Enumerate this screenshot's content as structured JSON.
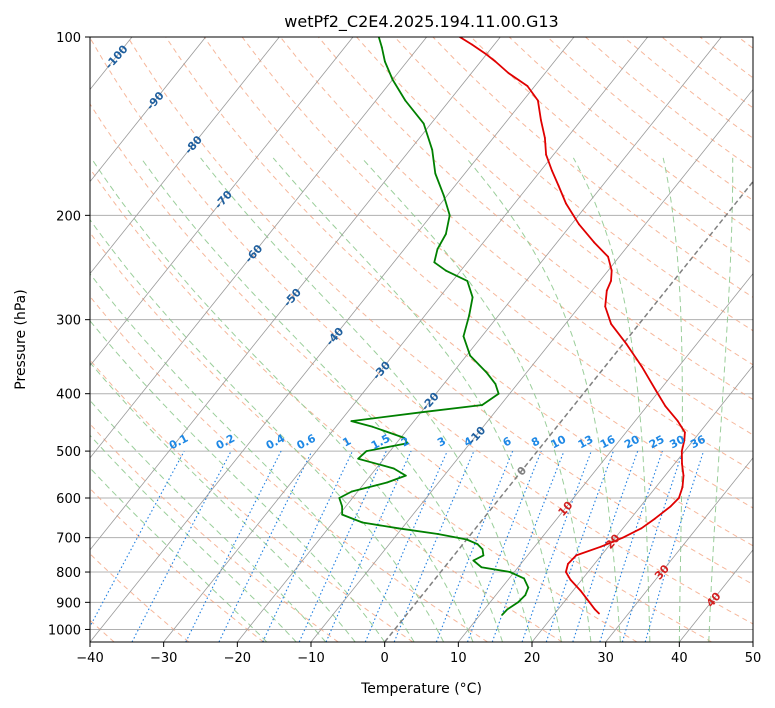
{
  "chart_data": {
    "type": "line",
    "title": "wetPf2_C2E4.2025.194.11.00.G13",
    "xlabel": "Temperature (°C)",
    "ylabel": "Pressure (hPa)",
    "xlim": [
      -40,
      50
    ],
    "ylim": [
      1050,
      100
    ],
    "y_scale": "log",
    "x_ticks": [
      "−40",
      "−30",
      "−20",
      "−10",
      "0",
      "10",
      "20",
      "30",
      "40",
      "50"
    ],
    "y_ticks": [
      {
        "p": 100,
        "label": "100"
      },
      {
        "p": 200,
        "label": "200"
      },
      {
        "p": 300,
        "label": "300"
      },
      {
        "p": 400,
        "label": "400"
      },
      {
        "p": 500,
        "label": "500"
      },
      {
        "p": 600,
        "label": "600"
      },
      {
        "p": 700,
        "label": "700"
      },
      {
        "p": 800,
        "label": "800"
      },
      {
        "p": 900,
        "label": "900"
      },
      {
        "p": 1000,
        "label": "1000"
      }
    ],
    "grid": true,
    "series": [
      {
        "kind": "temperature",
        "color": "#e00000",
        "points": [
          [
            26.0,
            940
          ],
          [
            25.0,
            925
          ],
          [
            23.5,
            900
          ],
          [
            21.0,
            860
          ],
          [
            18.5,
            825
          ],
          [
            17.0,
            800
          ],
          [
            16.4,
            775
          ],
          [
            16.6,
            750
          ],
          [
            19.0,
            725
          ],
          [
            21.0,
            700
          ],
          [
            22.5,
            675
          ],
          [
            23.3,
            650
          ],
          [
            24.1,
            620
          ],
          [
            24.3,
            600
          ],
          [
            23.6,
            575
          ],
          [
            22.5,
            550
          ],
          [
            21.0,
            525
          ],
          [
            19.6,
            500
          ],
          [
            18.8,
            480
          ],
          [
            18.0,
            465
          ],
          [
            15.8,
            445
          ],
          [
            12.5,
            420
          ],
          [
            9.5,
            395
          ],
          [
            5.0,
            360
          ],
          [
            0.5,
            330
          ],
          [
            -3.8,
            305
          ],
          [
            -6.5,
            285
          ],
          [
            -8.0,
            268
          ],
          [
            -8.5,
            258
          ],
          [
            -9.5,
            248
          ],
          [
            -11.5,
            235
          ],
          [
            -15.0,
            222
          ],
          [
            -19.0,
            207
          ],
          [
            -23.0,
            191
          ],
          [
            -26.0,
            178
          ],
          [
            -28.5,
            168
          ],
          [
            -31.0,
            158
          ],
          [
            -33.0,
            148
          ],
          [
            -35.5,
            138
          ],
          [
            -38.0,
            128
          ],
          [
            -41.0,
            121
          ],
          [
            -45.0,
            115
          ],
          [
            -48.0,
            110
          ],
          [
            -50.0,
            107
          ],
          [
            -53.0,
            103
          ],
          [
            -55.5,
            100
          ]
        ]
      },
      {
        "kind": "dewpoint",
        "color": "#008000",
        "points": [
          [
            13.0,
            945
          ],
          [
            13.1,
            925
          ],
          [
            13.8,
            900
          ],
          [
            14.0,
            875
          ],
          [
            13.6,
            850
          ],
          [
            12.0,
            820
          ],
          [
            9.4,
            800
          ],
          [
            5.0,
            785
          ],
          [
            3.2,
            765
          ],
          [
            4.0,
            750
          ],
          [
            3.2,
            732
          ],
          [
            2.0,
            718
          ],
          [
            0.0,
            705
          ],
          [
            -4.5,
            690
          ],
          [
            -10.5,
            675
          ],
          [
            -16.0,
            660
          ],
          [
            -19.6,
            640
          ],
          [
            -20.5,
            620
          ],
          [
            -21.8,
            600
          ],
          [
            -20.8,
            585
          ],
          [
            -17.0,
            565
          ],
          [
            -15.2,
            550
          ],
          [
            -17.6,
            535
          ],
          [
            -23.5,
            515
          ],
          [
            -23.2,
            500
          ],
          [
            -18.5,
            485
          ],
          [
            -19.5,
            475
          ],
          [
            -25.0,
            455
          ],
          [
            -28.5,
            445
          ],
          [
            -20.0,
            430
          ],
          [
            -12.5,
            418
          ],
          [
            -11.5,
            400
          ],
          [
            -13.0,
            385
          ],
          [
            -15.5,
            368
          ],
          [
            -19.5,
            345
          ],
          [
            -22.5,
            320
          ],
          [
            -24.0,
            295
          ],
          [
            -25.5,
            275
          ],
          [
            -28.0,
            258
          ],
          [
            -32.0,
            248
          ],
          [
            -34.5,
            240
          ],
          [
            -35.5,
            228
          ],
          [
            -36.0,
            215
          ],
          [
            -37.5,
            200
          ],
          [
            -40.5,
            185
          ],
          [
            -44.0,
            170
          ],
          [
            -47.0,
            155
          ],
          [
            -51.0,
            140
          ],
          [
            -56.0,
            128
          ],
          [
            -60.0,
            118
          ],
          [
            -63.0,
            110
          ],
          [
            -65.0,
            104
          ],
          [
            -66.5,
            100
          ]
        ]
      }
    ],
    "isotherm_labels": [
      "-100",
      "-90",
      "-80",
      "-70",
      "-60",
      "-50",
      "-40",
      "-30",
      "-20",
      "-10",
      "0",
      "10",
      "20",
      "30",
      "40"
    ],
    "mixing_ratio_labels": [
      "0.1",
      "0.2",
      "0.4",
      "0.6",
      "1",
      "1.5",
      "2",
      "3",
      "4",
      "6",
      "8",
      "10",
      "13",
      "16",
      "20",
      "25",
      "30",
      "36"
    ],
    "colors": {
      "grid": "#b0b0b0",
      "skewed_isotherm": "#999999",
      "dry_adiabat": "#f4a582",
      "moist_adiabat": "#8fc98f",
      "mixing_ratio": "#1e7ee0",
      "label_cold": "#1f5f9e",
      "label_warm": "#d12020",
      "label_mixing": "#1e88e5",
      "isotherm_0": "#808080"
    }
  }
}
